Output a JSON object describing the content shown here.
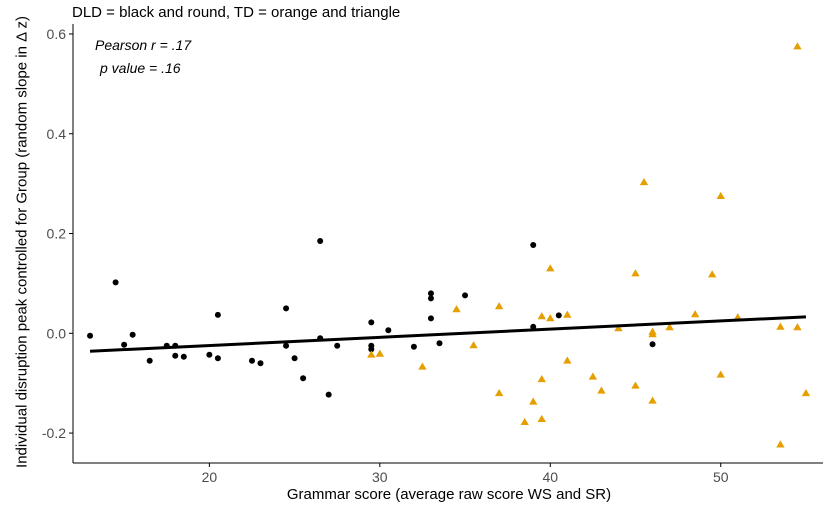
{
  "chart_data": {
    "type": "scatter",
    "subtitle": "DLD = black and round, TD = orange and triangle",
    "annotations": [
      "Pearson r = .17",
      "p value = .16"
    ],
    "xlabel": "Grammar score (average raw score WS and SR)",
    "ylabel": "Individual disruption peak controlled for Group (random slope in Δ z)",
    "xlim": [
      12,
      56
    ],
    "ylim": [
      -0.26,
      0.62
    ],
    "x_ticks": [
      20,
      30,
      40,
      50
    ],
    "x_tick_labels": [
      "20",
      "30",
      "40",
      "50"
    ],
    "y_ticks": [
      -0.2,
      0.0,
      0.2,
      0.4,
      0.6
    ],
    "y_tick_labels": [
      "-0.2",
      "0.0",
      "0.2",
      "0.4",
      "0.6"
    ],
    "grid": false,
    "series": [
      {
        "marker": "circle",
        "color": "#000000",
        "points": [
          [
            13,
            -0.005
          ],
          [
            14.5,
            0.102
          ],
          [
            15,
            -0.023
          ],
          [
            15.5,
            -0.003
          ],
          [
            16.5,
            -0.055
          ],
          [
            17.5,
            -0.025
          ],
          [
            18,
            -0.045
          ],
          [
            18,
            -0.025
          ],
          [
            18.5,
            -0.047
          ],
          [
            20,
            -0.043
          ],
          [
            20.5,
            0.037
          ],
          [
            20.5,
            -0.05
          ],
          [
            22.5,
            -0.055
          ],
          [
            23,
            -0.06
          ],
          [
            24.5,
            0.05
          ],
          [
            24.5,
            -0.025
          ],
          [
            25,
            -0.05
          ],
          [
            25.5,
            -0.09
          ],
          [
            26.5,
            0.185
          ],
          [
            26.5,
            -0.01
          ],
          [
            27,
            -0.123
          ],
          [
            27.5,
            -0.025
          ],
          [
            29.5,
            0.022
          ],
          [
            29.5,
            -0.025
          ],
          [
            29.5,
            -0.032
          ],
          [
            30.5,
            0.006
          ],
          [
            32,
            -0.027
          ],
          [
            33,
            0.08
          ],
          [
            33,
            0.07
          ],
          [
            33,
            0.03
          ],
          [
            33.5,
            -0.02
          ],
          [
            35,
            0.076
          ],
          [
            39,
            0.177
          ],
          [
            39,
            0.013
          ],
          [
            40.5,
            0.036
          ],
          [
            46,
            -0.022
          ]
        ]
      },
      {
        "marker": "triangle",
        "color": "#e69f00",
        "points": [
          [
            29.5,
            -0.043
          ],
          [
            30,
            -0.041
          ],
          [
            32.5,
            -0.067
          ],
          [
            34.5,
            0.048
          ],
          [
            35.5,
            -0.024
          ],
          [
            37,
            0.054
          ],
          [
            37,
            -0.12
          ],
          [
            38.5,
            -0.178
          ],
          [
            39,
            -0.137
          ],
          [
            39.5,
            0.034
          ],
          [
            39.5,
            -0.092
          ],
          [
            39.5,
            -0.172
          ],
          [
            40,
            0.13
          ],
          [
            40,
            0.03
          ],
          [
            41,
            0.037
          ],
          [
            41,
            -0.055
          ],
          [
            42.5,
            -0.087
          ],
          [
            43,
            -0.115
          ],
          [
            44,
            0.01
          ],
          [
            45,
            0.12
          ],
          [
            45,
            -0.105
          ],
          [
            45.5,
            0.303
          ],
          [
            46,
            0.003
          ],
          [
            46,
            -0.002
          ],
          [
            46,
            -0.135
          ],
          [
            47,
            0.012
          ],
          [
            48.5,
            0.038
          ],
          [
            49.5,
            0.118
          ],
          [
            50,
            0.275
          ],
          [
            50,
            -0.083
          ],
          [
            51,
            0.032
          ],
          [
            53.5,
            0.013
          ],
          [
            53.5,
            -0.223
          ],
          [
            54.5,
            0.575
          ],
          [
            54.5,
            0.012
          ],
          [
            55,
            -0.12
          ]
        ]
      }
    ],
    "trend_line": {
      "x": [
        13,
        55
      ],
      "y": [
        -0.036,
        0.033
      ],
      "color": "#000000"
    }
  }
}
